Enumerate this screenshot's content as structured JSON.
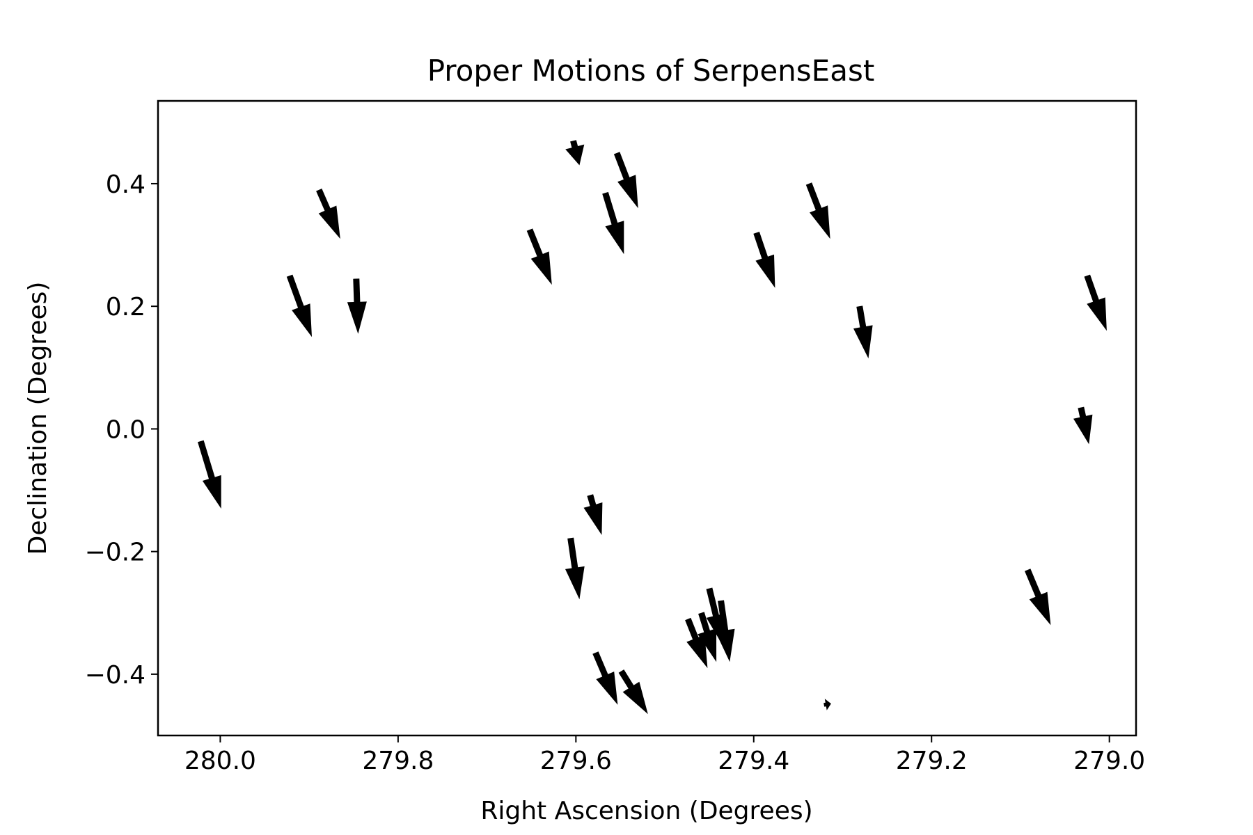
{
  "chart_data": {
    "type": "quiver",
    "title": "Proper Motions of SerpensEast",
    "xlabel": "Right Ascension (Degrees)",
    "ylabel": "Declination (Degrees)",
    "xlim": [
      280.07,
      278.97
    ],
    "ylim": [
      -0.5,
      0.535
    ],
    "x_inverted": true,
    "grid": false,
    "xticks": [
      280.0,
      279.8,
      279.6,
      279.4,
      279.2,
      279.0
    ],
    "xtick_labels": [
      "280.0",
      "279.8",
      "279.6",
      "279.4",
      "279.2",
      "279.0"
    ],
    "yticks": [
      0.4,
      0.2,
      0.0,
      -0.2,
      -0.4
    ],
    "ytick_labels": [
      "0.4",
      "0.2",
      "0.0",
      "−0.2",
      "−0.4"
    ],
    "vectors": [
      {
        "ra": 279.889,
        "dec": 0.39,
        "dra": -0.024,
        "ddec": -0.08
      },
      {
        "ra": 279.554,
        "dec": 0.45,
        "dra": -0.024,
        "ddec": -0.09
      },
      {
        "ra": 279.603,
        "dec": 0.47,
        "dra": -0.007,
        "ddec": -0.04
      },
      {
        "ra": 279.338,
        "dec": 0.4,
        "dra": -0.024,
        "ddec": -0.09
      },
      {
        "ra": 279.567,
        "dec": 0.385,
        "dra": -0.021,
        "ddec": -0.1
      },
      {
        "ra": 279.652,
        "dec": 0.325,
        "dra": -0.025,
        "ddec": -0.09
      },
      {
        "ra": 279.397,
        "dec": 0.32,
        "dra": -0.021,
        "ddec": -0.09
      },
      {
        "ra": 279.922,
        "dec": 0.25,
        "dra": -0.025,
        "ddec": -0.1
      },
      {
        "ra": 279.847,
        "dec": 0.245,
        "dra": -0.002,
        "ddec": -0.09
      },
      {
        "ra": 279.281,
        "dec": 0.2,
        "dra": -0.01,
        "ddec": -0.085
      },
      {
        "ra": 279.025,
        "dec": 0.25,
        "dra": -0.022,
        "ddec": -0.09
      },
      {
        "ra": 279.032,
        "dec": 0.035,
        "dra": -0.009,
        "ddec": -0.06
      },
      {
        "ra": 280.022,
        "dec": -0.02,
        "dra": -0.023,
        "ddec": -0.11
      },
      {
        "ra": 279.584,
        "dec": -0.108,
        "dra": -0.013,
        "ddec": -0.065
      },
      {
        "ra": 279.606,
        "dec": -0.178,
        "dra": -0.01,
        "ddec": -0.1
      },
      {
        "ra": 279.092,
        "dec": -0.23,
        "dra": -0.026,
        "ddec": -0.09
      },
      {
        "ra": 279.45,
        "dec": -0.26,
        "dra": -0.016,
        "ddec": -0.095
      },
      {
        "ra": 279.437,
        "dec": -0.28,
        "dra": -0.01,
        "ddec": -0.1
      },
      {
        "ra": 279.459,
        "dec": -0.3,
        "dra": -0.017,
        "ddec": -0.08
      },
      {
        "ra": 279.474,
        "dec": -0.31,
        "dra": -0.022,
        "ddec": -0.08
      },
      {
        "ra": 279.578,
        "dec": -0.365,
        "dra": -0.025,
        "ddec": -0.085
      },
      {
        "ra": 279.549,
        "dec": -0.395,
        "dra": -0.03,
        "ddec": -0.07
      },
      {
        "ra": 279.321,
        "dec": -0.45,
        "dra": -0.008,
        "ddec": 0.002
      }
    ]
  }
}
